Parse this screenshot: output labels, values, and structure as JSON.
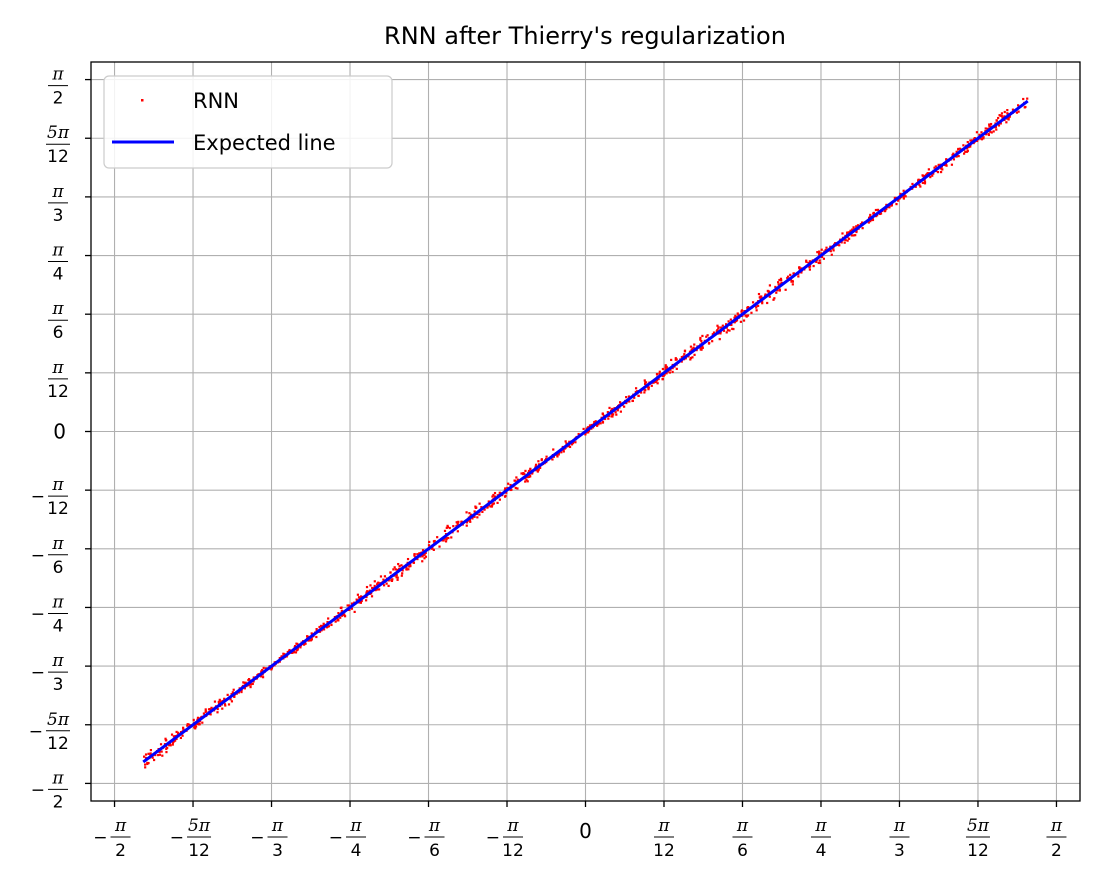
{
  "chart_data": {
    "type": "scatter",
    "title": "RNN after Thierry's regularization",
    "xlabel": "",
    "ylabel": "",
    "xlim": [
      -1.6493,
      1.6493
    ],
    "ylim": [
      -1.6493,
      1.6493
    ],
    "grid": true,
    "legend_position": "top-left",
    "ticks": [
      {
        "value": -1.5708,
        "sign": "−",
        "num": "π",
        "den": "2"
      },
      {
        "value": -1.309,
        "sign": "−",
        "num": "5π",
        "den": "12"
      },
      {
        "value": -1.0472,
        "sign": "−",
        "num": "π",
        "den": "3"
      },
      {
        "value": -0.7854,
        "sign": "−",
        "num": "π",
        "den": "4"
      },
      {
        "value": -0.5236,
        "sign": "−",
        "num": "π",
        "den": "6"
      },
      {
        "value": -0.2618,
        "sign": "−",
        "num": "π",
        "den": "12"
      },
      {
        "value": 0,
        "sign": "",
        "num": "0",
        "den": ""
      },
      {
        "value": 0.2618,
        "sign": "",
        "num": "π",
        "den": "12"
      },
      {
        "value": 0.5236,
        "sign": "",
        "num": "π",
        "den": "6"
      },
      {
        "value": 0.7854,
        "sign": "",
        "num": "π",
        "den": "4"
      },
      {
        "value": 1.0472,
        "sign": "",
        "num": "π",
        "den": "3"
      },
      {
        "value": 1.309,
        "sign": "",
        "num": "5π",
        "den": "12"
      },
      {
        "value": 1.5708,
        "sign": "",
        "num": "π",
        "den": "2"
      }
    ],
    "series": [
      {
        "name": "RNN",
        "kind": "scatter",
        "color": "#ff0000",
        "x_range": [
          -1.475,
          1.475
        ],
        "spread": 0.025
      },
      {
        "name": "Expected line",
        "kind": "line",
        "color": "#0000ff",
        "x": [
          -1.475,
          1.475
        ],
        "y": [
          -1.475,
          1.475
        ]
      }
    ]
  }
}
